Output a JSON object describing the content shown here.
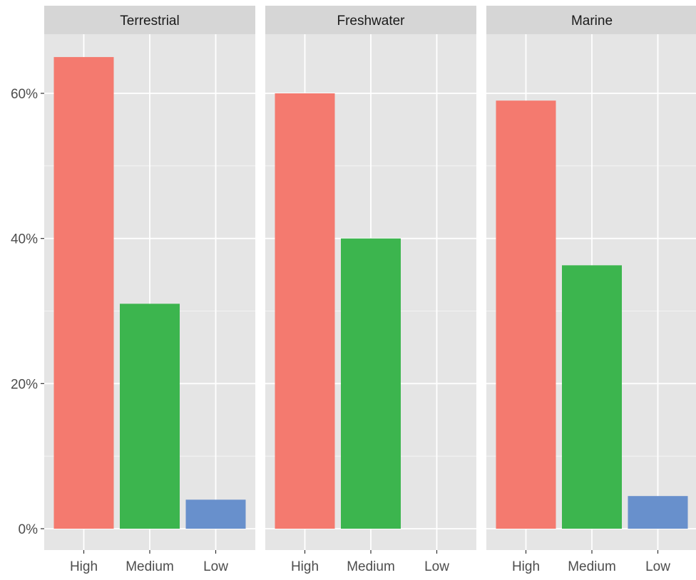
{
  "chart_data": {
    "type": "bar",
    "facets": [
      {
        "label": "Terrestrial",
        "categories": [
          "High",
          "Medium",
          "Low"
        ],
        "values": [
          65.0,
          31.0,
          4.0
        ]
      },
      {
        "label": "Freshwater",
        "categories": [
          "High",
          "Medium",
          "Low"
        ],
        "values": [
          60.0,
          40.0,
          0.0
        ]
      },
      {
        "label": "Marine",
        "categories": [
          "High",
          "Medium",
          "Low"
        ],
        "values": [
          59.0,
          36.3,
          4.5
        ]
      }
    ],
    "category_colors": {
      "High": "#F47A6F",
      "Medium": "#3CB54E",
      "Low": "#6890CC"
    },
    "y_ticks": [
      {
        "value": 0,
        "label": "0%"
      },
      {
        "value": 20,
        "label": "20%"
      },
      {
        "value": 40,
        "label": "40%"
      },
      {
        "value": 60,
        "label": "60%"
      }
    ],
    "ylim": [
      0,
      69
    ],
    "xlabel": "",
    "ylabel": "",
    "title": "",
    "grid": true,
    "legend": "none",
    "colors": {
      "panel_background": "#E5E5E5",
      "strip_background": "#D6D6D6",
      "gridline": "#FFFFFF",
      "text": "#1A1A1A",
      "tick_label": "#4D4D4D"
    }
  }
}
